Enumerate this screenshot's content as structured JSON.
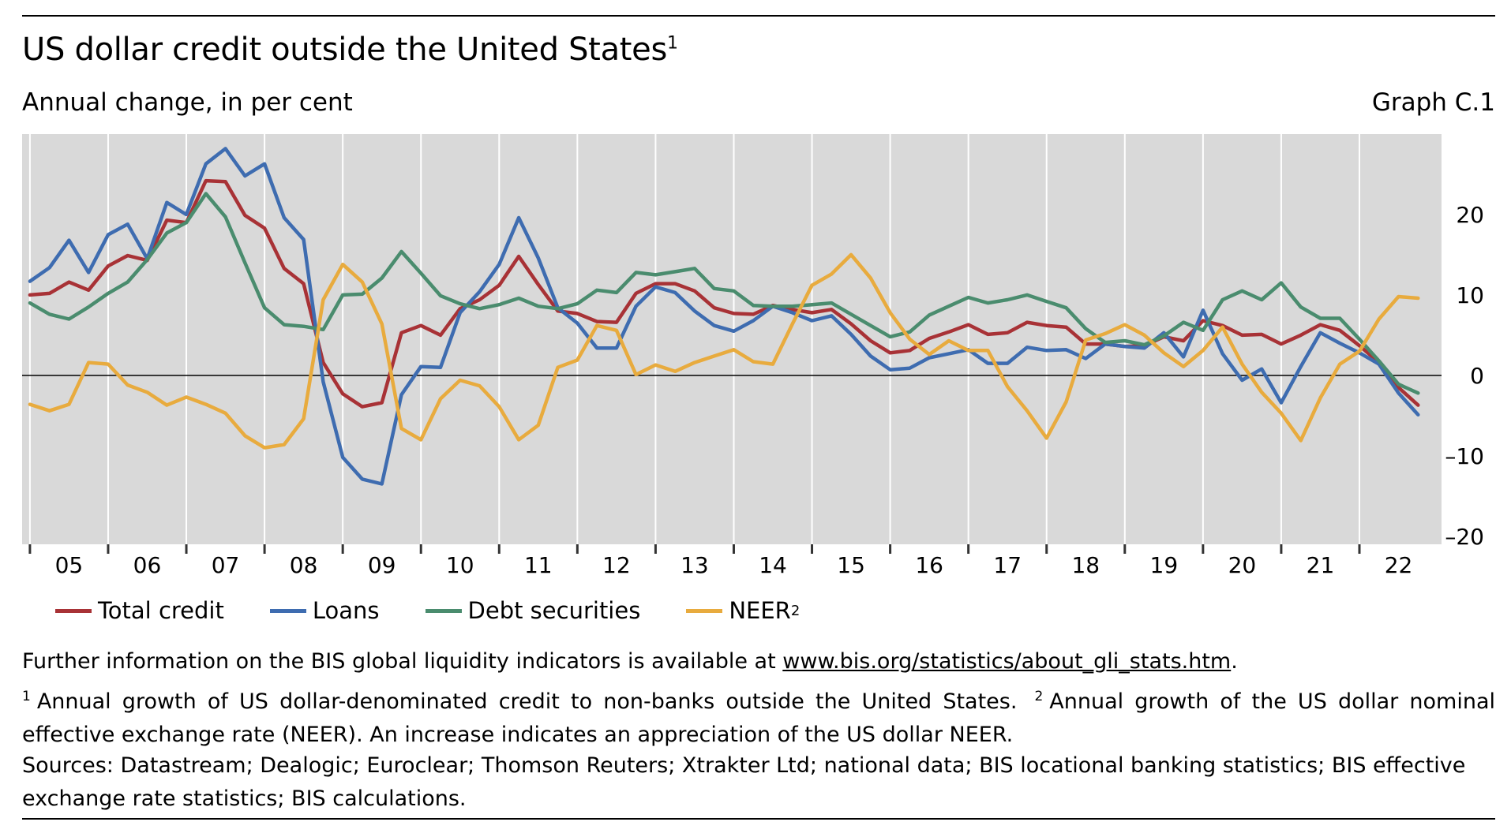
{
  "header": {
    "title": "US dollar credit outside the United States",
    "title_footnote": "1",
    "subtitle": "Annual change, in per cent",
    "graph_id": "Graph C.1"
  },
  "colors": {
    "plot_background": "#d9d9d9",
    "total_credit": "#a83236",
    "loans": "#3e6cb0",
    "debt_securities": "#4a8c6e",
    "neer": "#e8ab3e"
  },
  "legend": {
    "total_credit": "Total credit",
    "loans": "Loans",
    "debt_securities": "Debt securities",
    "neer": "NEER",
    "neer_footnote": "2"
  },
  "notes": {
    "info_prefix": "Further information on the BIS global liquidity indicators is available at ",
    "info_link": "www.bis.org/statistics/about_gli_stats.htm",
    "info_suffix": ".",
    "footnote1_num": "1",
    "footnote1": "Annual growth of US dollar-denominated credit to non-banks outside the United States.",
    "footnote2_num": "2",
    "footnote2": "Annual growth of the US dollar nominal effective exchange rate (NEER). An increase indicates an appreciation of the US dollar NEER.",
    "sources": "Sources: Datastream; Dealogic; Euroclear; Thomson Reuters; Xtrakter Ltd; national data; BIS locational banking statistics; BIS effective exchange rate statistics; BIS calculations."
  },
  "chart_data": {
    "type": "line",
    "x_start": 2005.0,
    "x_step": 0.25,
    "xlim": [
      2004.9,
      2023.05
    ],
    "ylim": [
      -21,
      30
    ],
    "y_ticks": [
      20,
      10,
      0,
      -10,
      -20
    ],
    "y_tick_labels": [
      "20",
      "10",
      "0",
      "–10",
      "–20"
    ],
    "x_tick_labels": [
      "05",
      "06",
      "07",
      "08",
      "09",
      "10",
      "11",
      "12",
      "13",
      "14",
      "15",
      "16",
      "17",
      "18",
      "19",
      "20",
      "21",
      "22"
    ],
    "x_tick_years": [
      2005,
      2006,
      2007,
      2008,
      2009,
      2010,
      2011,
      2012,
      2013,
      2014,
      2015,
      2016,
      2017,
      2018,
      2019,
      2020,
      2021,
      2022
    ],
    "zero_line": true,
    "grid": "vertical",
    "legend_position": "bottom",
    "series": [
      {
        "key": "total_credit",
        "name": "Total credit",
        "color": "#a83236",
        "values": [
          10,
          10.2,
          11.6,
          10.6,
          13.6,
          14.9,
          14.3,
          19.3,
          19,
          24.2,
          24.1,
          19.9,
          18.3,
          13.3,
          11.4,
          1.6,
          -2.3,
          -3.9,
          -3.4,
          5.3,
          6.2,
          5.0,
          8.3,
          9.4,
          11.2,
          14.8,
          11.3,
          8.0,
          7.7,
          6.7,
          6.6,
          10.2,
          11.4,
          11.4,
          10.5,
          8.4,
          7.7,
          7.6,
          8.7,
          8.2,
          7.8,
          8.2,
          6.4,
          4.3,
          2.8,
          3.1,
          4.6,
          5.4,
          6.3,
          5.1,
          5.3,
          6.6,
          6.2,
          6.0,
          3.9,
          3.9,
          3.6,
          3.7,
          4.8,
          4.3,
          6.8,
          6.2,
          5.0,
          5.1,
          3.9,
          5.0,
          6.3,
          5.6,
          3.7,
          1.6,
          -1.5,
          -3.7
        ]
      },
      {
        "key": "loans",
        "name": "Loans",
        "color": "#3e6cb0",
        "values": [
          11.7,
          13.4,
          16.8,
          12.8,
          17.5,
          18.8,
          14.5,
          21.5,
          20,
          26.3,
          28.2,
          24.8,
          26.3,
          19.6,
          16.9,
          -0.8,
          -10.2,
          -12.9,
          -13.5,
          -2.4,
          1.1,
          1.0,
          7.8,
          10.4,
          13.8,
          19.6,
          14.6,
          8.4,
          6.5,
          3.4,
          3.4,
          8.6,
          11,
          10.3,
          8.0,
          6.2,
          5.5,
          6.8,
          8.6,
          7.8,
          6.8,
          7.4,
          5.1,
          2.4,
          0.7,
          0.9,
          2.2,
          2.7,
          3.2,
          1.5,
          1.5,
          3.5,
          3.1,
          3.2,
          2.1,
          3.9,
          3.6,
          3.4,
          5.3,
          2.3,
          8.1,
          2.7,
          -0.6,
          0.8,
          -3.4,
          1.1,
          5.3,
          4.0,
          2.8,
          1.4,
          -2.2,
          -4.9
        ]
      },
      {
        "key": "debt_securities",
        "name": "Debt securities",
        "color": "#4a8c6e",
        "values": [
          9.0,
          7.6,
          7.0,
          8.5,
          10.2,
          11.6,
          14.4,
          17.7,
          19,
          22.6,
          19.7,
          14.0,
          8.4,
          6.3,
          6.1,
          5.7,
          10,
          10.1,
          12.1,
          15.4,
          12.7,
          9.9,
          8.9,
          8.3,
          8.8,
          9.6,
          8.6,
          8.3,
          8.9,
          10.6,
          10.3,
          12.8,
          12.5,
          12.9,
          13.3,
          10.8,
          10.5,
          8.7,
          8.6,
          8.6,
          8.8,
          9.0,
          7.6,
          6.2,
          4.8,
          5.4,
          7.5,
          8.6,
          9.7,
          9.0,
          9.4,
          10.0,
          9.2,
          8.4,
          5.8,
          4.1,
          4.3,
          3.8,
          4.9,
          6.6,
          5.6,
          9.4,
          10.5,
          9.4,
          11.5,
          8.5,
          7.1,
          7.1,
          4.5,
          1.8,
          -1.1,
          -2.2
        ]
      },
      {
        "key": "neer",
        "name": "NEER",
        "color": "#e8ab3e",
        "values": [
          -3.6,
          -4.4,
          -3.6,
          1.6,
          1.4,
          -1.2,
          -2.1,
          -3.7,
          -2.7,
          -3.6,
          -4.7,
          -7.5,
          -9.0,
          -8.6,
          -5.4,
          9.4,
          13.8,
          11.6,
          6.4,
          -6.6,
          -8.0,
          -2.9,
          -0.6,
          -1.3,
          -3.9,
          -8.0,
          -6.2,
          1.0,
          1.9,
          6.2,
          5.6,
          0.1,
          1.3,
          0.5,
          1.6,
          2.4,
          3.2,
          1.7,
          1.4,
          6.4,
          11.2,
          12.6,
          15.0,
          12.1,
          7.8,
          4.5,
          2.6,
          4.3,
          3.1,
          3.1,
          -1.4,
          -4.4,
          -7.8,
          -3.3,
          4.4,
          5.2,
          6.3,
          5.0,
          2.8,
          1.1,
          3.1,
          6.0,
          1.4,
          -2.1,
          -4.7,
          -8.1,
          -2.8,
          1.4,
          3.0,
          7.0,
          9.8,
          9.6
        ]
      }
    ]
  }
}
